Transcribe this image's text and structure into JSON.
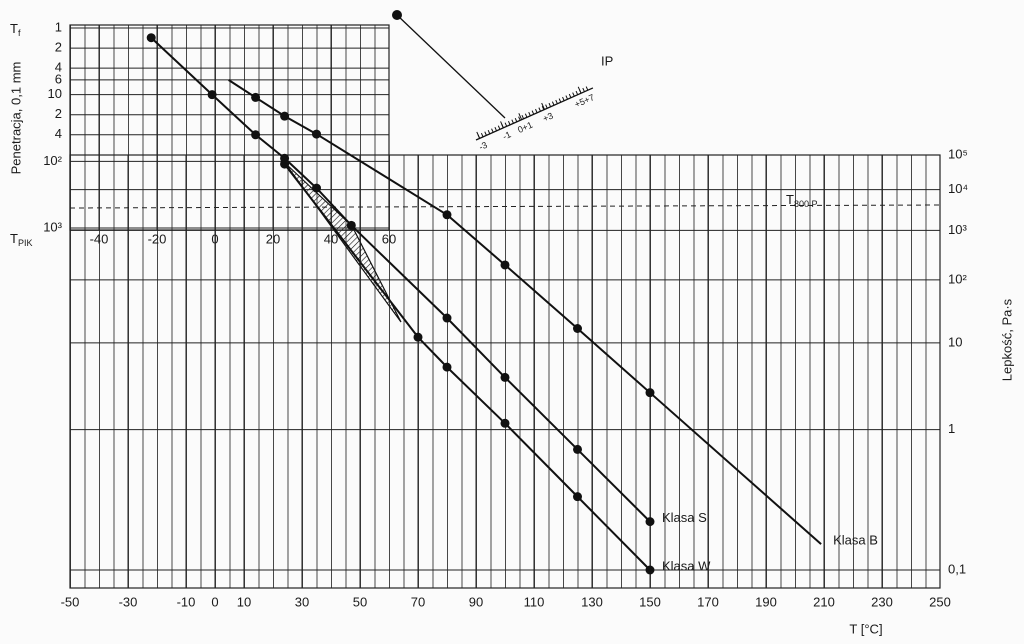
{
  "chart_data": [
    {
      "type": "line",
      "x_label": "T [°C]",
      "y2_label": "Lepkość, Pa·s",
      "xlim": [
        -50,
        250
      ],
      "xticks": [
        -50,
        -30,
        -10,
        0,
        10,
        30,
        50,
        70,
        90,
        110,
        130,
        150,
        170,
        190,
        210,
        230,
        250
      ],
      "y2lim": [
        0.1,
        100000
      ],
      "y2scale": "loglog",
      "y2ticks": [
        {
          "value": 0.1,
          "label": "0,1"
        },
        1,
        10,
        {
          "value": 100,
          "label": "10²"
        },
        {
          "value": 1000,
          "label": "10³"
        },
        {
          "value": 10000,
          "label": "10⁴"
        },
        {
          "value": 100000,
          "label": "10⁵"
        }
      ],
      "grid": true,
      "reference_label": {
        "symbol": "T",
        "subscript": "800 P"
      },
      "series": [
        {
          "name": "Klasa B",
          "color": "#111111",
          "axis": "y2",
          "x": [
            80,
            100,
            125,
            150
          ],
          "values": [
            2300,
            190,
            16,
            2.4
          ]
        },
        {
          "name": "Klasa S",
          "color": "#111111",
          "axis": "y2",
          "x": [
            35,
            47,
            80,
            100,
            125,
            150
          ],
          "values": [
            11000,
            1300,
            23,
            3.6,
            0.66,
            0.19
          ]
        },
        {
          "name": "Klasa W",
          "color": "#111111",
          "axis": "y2",
          "x": [
            70,
            80,
            100,
            125,
            150
          ],
          "values": [
            12,
            4.8,
            1.15,
            0.28,
            0.1
          ]
        }
      ]
    },
    {
      "type": "line",
      "y_label": "Penetracja, 0,1 mm",
      "top_label": {
        "symbol": "T",
        "subscript": "f"
      },
      "bottom_label": {
        "symbol": "T",
        "subscript": "PIK"
      },
      "xlim": [
        -50,
        60
      ],
      "xticks": [
        -40,
        -20,
        0,
        20,
        40,
        60
      ],
      "ylim": [
        1,
        1000
      ],
      "ylog": true,
      "y_reversed": true,
      "yticks": [
        1,
        2,
        4,
        6,
        10,
        {
          "value": 20,
          "label": "2"
        },
        {
          "value": 40,
          "label": "4"
        },
        {
          "value": 100,
          "label": "10²"
        },
        {
          "value": 1000,
          "label": "10³"
        }
      ],
      "series": [
        {
          "color": "#111111",
          "x": [
            14,
            24,
            35
          ],
          "values": [
            11,
            21,
            39
          ]
        },
        {
          "color": "#111111",
          "x": [
            -22,
            -1,
            14,
            24
          ],
          "values": [
            1.4,
            10,
            40,
            90
          ]
        },
        {
          "color": "#111111",
          "x": [
            24
          ],
          "values": [
            110
          ]
        }
      ]
    }
  ],
  "ip_scale": {
    "label": "IP",
    "ticks": [
      "-3",
      "-1",
      "0+1",
      "+3",
      "+5+7"
    ]
  }
}
